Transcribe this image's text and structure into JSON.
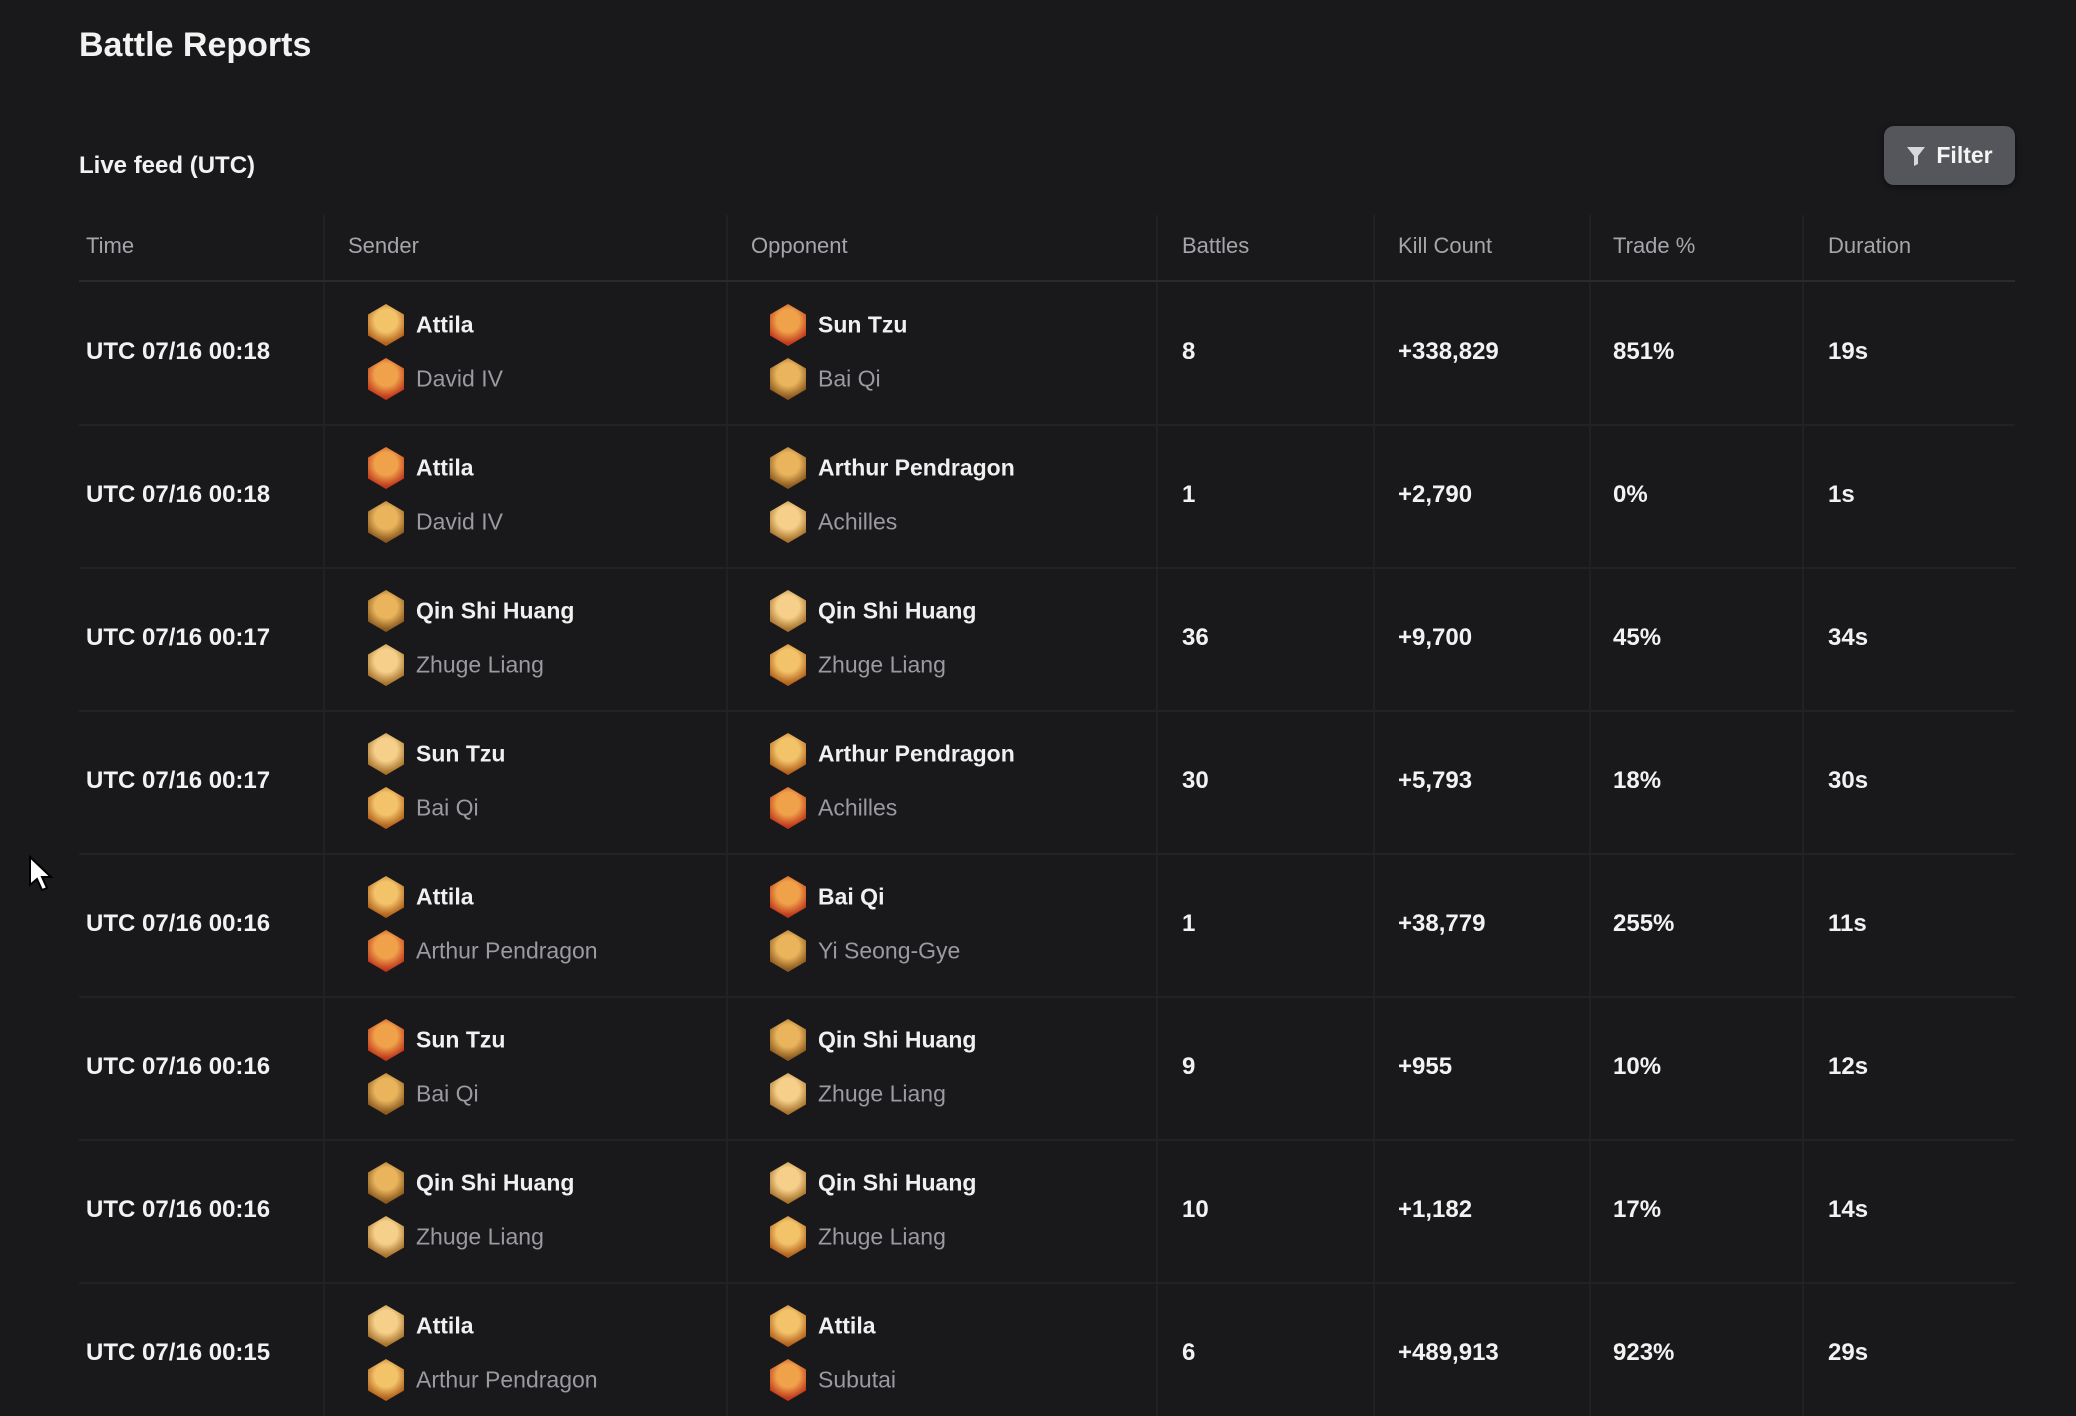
{
  "header": {
    "title": "Battle Reports",
    "subtitle": "Live feed (UTC)",
    "filter_button": "Filter"
  },
  "table": {
    "columns": [
      "Time",
      "Sender",
      "Opponent",
      "Battles",
      "Kill Count",
      "Trade %",
      "Duration"
    ],
    "rows": [
      {
        "time": "UTC 07/16 00:18",
        "sender": [
          "Attila",
          "David IV"
        ],
        "opponent": [
          "Sun Tzu",
          "Bai Qi"
        ],
        "battles": "8",
        "kill_count": "+338,829",
        "trade": "851%",
        "duration": "19s"
      },
      {
        "time": "UTC 07/16 00:18",
        "sender": [
          "Attila",
          "David IV"
        ],
        "opponent": [
          "Arthur Pendragon",
          "Achilles"
        ],
        "battles": "1",
        "kill_count": "+2,790",
        "trade": "0%",
        "duration": "1s"
      },
      {
        "time": "UTC 07/16 00:17",
        "sender": [
          "Qin Shi Huang",
          "Zhuge Liang"
        ],
        "opponent": [
          "Qin Shi Huang",
          "Zhuge Liang"
        ],
        "battles": "36",
        "kill_count": "+9,700",
        "trade": "45%",
        "duration": "34s"
      },
      {
        "time": "UTC 07/16 00:17",
        "sender": [
          "Sun Tzu",
          "Bai Qi"
        ],
        "opponent": [
          "Arthur Pendragon",
          "Achilles"
        ],
        "battles": "30",
        "kill_count": "+5,793",
        "trade": "18%",
        "duration": "30s"
      },
      {
        "time": "UTC 07/16 00:16",
        "sender": [
          "Attila",
          "Arthur Pendragon"
        ],
        "opponent": [
          "Bai Qi",
          "Yi Seong-Gye"
        ],
        "battles": "1",
        "kill_count": "+38,779",
        "trade": "255%",
        "duration": "11s"
      },
      {
        "time": "UTC 07/16 00:16",
        "sender": [
          "Sun Tzu",
          "Bai Qi"
        ],
        "opponent": [
          "Qin Shi Huang",
          "Zhuge Liang"
        ],
        "battles": "9",
        "kill_count": "+955",
        "trade": "10%",
        "duration": "12s"
      },
      {
        "time": "UTC 07/16 00:16",
        "sender": [
          "Qin Shi Huang",
          "Zhuge Liang"
        ],
        "opponent": [
          "Qin Shi Huang",
          "Zhuge Liang"
        ],
        "battles": "10",
        "kill_count": "+1,182",
        "trade": "17%",
        "duration": "14s"
      },
      {
        "time": "UTC 07/16 00:15",
        "sender": [
          "Attila",
          "Arthur Pendragon"
        ],
        "opponent": [
          "Attila",
          "Subutai"
        ],
        "battles": "6",
        "kill_count": "+489,913",
        "trade": "923%",
        "duration": "29s"
      }
    ]
  }
}
